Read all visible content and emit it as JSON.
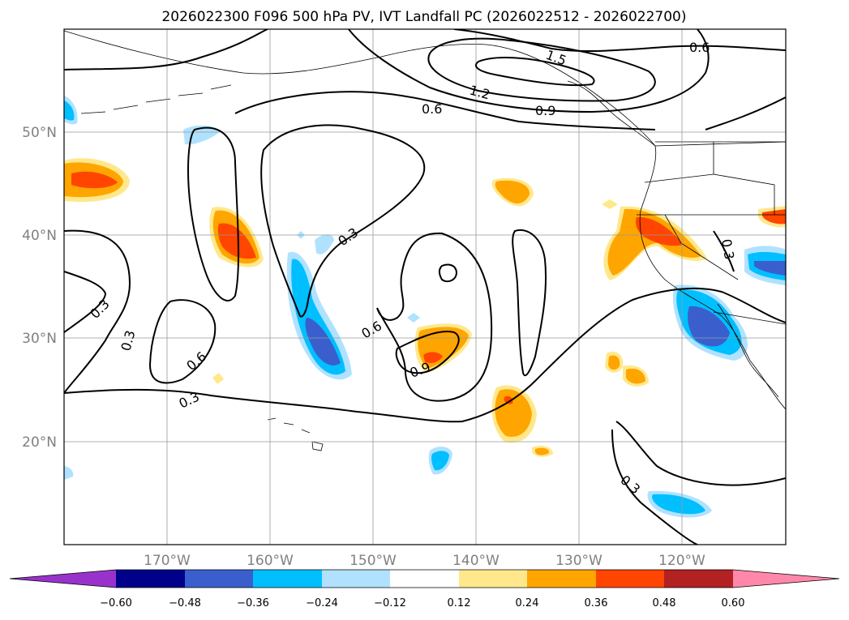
{
  "title": "2026022300 F096 500 hPa PV, IVT Landfall PC (2026022512 - 2026022700)",
  "lon_labels": [
    "170°W",
    "160°W",
    "150°W",
    "140°W",
    "130°W",
    "120°W"
  ],
  "lat_labels": [
    "50°N",
    "40°N",
    "30°N",
    "20°N"
  ],
  "colorbar": {
    "ticks": [
      "−0.60",
      "−0.48",
      "−0.36",
      "−0.24",
      "−0.12",
      "0.12",
      "0.24",
      "0.36",
      "0.48",
      "0.60"
    ],
    "colors": [
      "#9932cc",
      "#00008b",
      "#3a5fcd",
      "#00bfff",
      "#b0e2ff",
      "#ffffff",
      "#ffe88c",
      "#ffa500",
      "#ff4500",
      "#b22222",
      "#ff88aa"
    ]
  },
  "contour_labels": [
    {
      "id": "c-06-top",
      "text": "0.6"
    },
    {
      "id": "c-05",
      "text": "1.5"
    },
    {
      "id": "c-12",
      "text": "1.2"
    },
    {
      "id": "c-09-top",
      "text": "0.9"
    },
    {
      "id": "c-06-a",
      "text": "0.6"
    },
    {
      "id": "c-03-a",
      "text": "0.3"
    },
    {
      "id": "c-03-b",
      "text": "0.3"
    },
    {
      "id": "c-03-c",
      "text": "0.3"
    },
    {
      "id": "c-06-b",
      "text": "0.6"
    },
    {
      "id": "c-03-d",
      "text": "0.3"
    },
    {
      "id": "c-06-c",
      "text": "0.6"
    },
    {
      "id": "c-09-b",
      "text": "0.9"
    },
    {
      "id": "c-03-e",
      "text": "0.3"
    },
    {
      "id": "c-03-f",
      "text": "0.3"
    }
  ]
}
